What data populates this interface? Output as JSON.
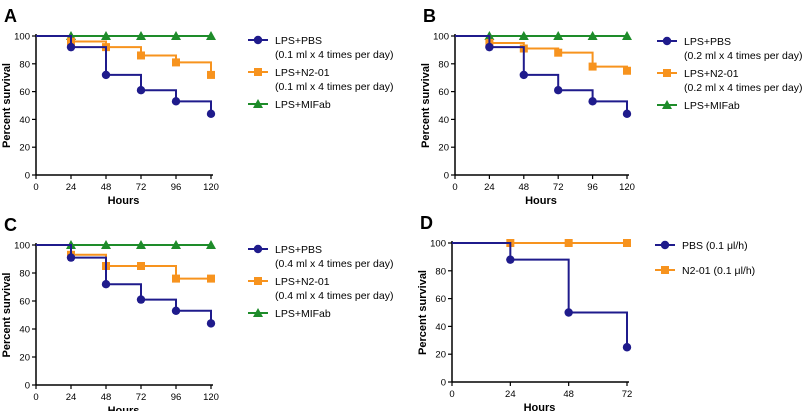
{
  "colors": {
    "pbs": "#1f1b8c",
    "n2": "#f7931e",
    "mifab": "#1e8c2a"
  },
  "chart_data": [
    {
      "panel": "A",
      "type": "line",
      "ylabel": "Percent survival",
      "xlabel": "Hours",
      "xlim": [
        0,
        120
      ],
      "ylim": [
        0,
        100
      ],
      "xticks": [
        0,
        24,
        48,
        72,
        96,
        120
      ],
      "yticks": [
        0,
        20,
        40,
        60,
        80,
        100
      ],
      "series": [
        {
          "name": "LPS+PBS",
          "sub": "(0.1 ml x 4 times per day)",
          "color": "pbs",
          "marker": "circle",
          "x": [
            24,
            48,
            72,
            96,
            120
          ],
          "values": [
            92,
            72,
            61,
            53,
            44
          ]
        },
        {
          "name": "LPS+N2-01",
          "sub": "(0.1 ml x 4 times per day)",
          "color": "n2",
          "marker": "square",
          "x": [
            24,
            48,
            72,
            96,
            120
          ],
          "values": [
            96,
            92,
            86,
            81,
            72
          ]
        },
        {
          "name": "LPS+MIFab",
          "sub": "",
          "color": "mifab",
          "marker": "triangle",
          "x": [
            24,
            48,
            72,
            96,
            120
          ],
          "values": [
            100,
            100,
            100,
            100,
            100
          ]
        }
      ]
    },
    {
      "panel": "B",
      "type": "line",
      "ylabel": "Percent survival",
      "xlabel": "Hours",
      "xlim": [
        0,
        120
      ],
      "ylim": [
        0,
        100
      ],
      "xticks": [
        0,
        24,
        48,
        72,
        96,
        120
      ],
      "yticks": [
        0,
        20,
        40,
        60,
        80,
        100
      ],
      "series": [
        {
          "name": "LPS+PBS",
          "sub": "(0.2 ml x 4 times per day)",
          "color": "pbs",
          "marker": "circle",
          "x": [
            24,
            48,
            72,
            96,
            120
          ],
          "values": [
            92,
            72,
            61,
            53,
            44
          ]
        },
        {
          "name": "LPS+N2-01",
          "sub": "(0.2 ml x 4 times per day)",
          "color": "n2",
          "marker": "square",
          "x": [
            24,
            48,
            72,
            96,
            120
          ],
          "values": [
            95,
            91,
            88,
            78,
            75
          ]
        },
        {
          "name": "LPS+MIFab",
          "sub": "",
          "color": "mifab",
          "marker": "triangle",
          "x": [
            24,
            48,
            72,
            96,
            120
          ],
          "values": [
            100,
            100,
            100,
            100,
            100
          ]
        }
      ]
    },
    {
      "panel": "C",
      "type": "line",
      "ylabel": "Percent survival",
      "xlabel": "Hours",
      "xlim": [
        0,
        120
      ],
      "ylim": [
        0,
        100
      ],
      "xticks": [
        0,
        24,
        48,
        72,
        96,
        120
      ],
      "yticks": [
        0,
        20,
        40,
        60,
        80,
        100
      ],
      "series": [
        {
          "name": "LPS+PBS",
          "sub": "(0.4 ml x 4 times per day)",
          "color": "pbs",
          "marker": "circle",
          "x": [
            24,
            48,
            72,
            96,
            120
          ],
          "values": [
            91,
            72,
            61,
            53,
            44
          ]
        },
        {
          "name": "LPS+N2-01",
          "sub": "(0.4 ml x 4 times per day)",
          "color": "n2",
          "marker": "square",
          "x": [
            24,
            48,
            72,
            96,
            120
          ],
          "values": [
            93,
            85,
            85,
            76,
            76
          ]
        },
        {
          "name": "LPS+MIFab",
          "sub": "",
          "color": "mifab",
          "marker": "triangle",
          "x": [
            24,
            48,
            72,
            96,
            120
          ],
          "values": [
            100,
            100,
            100,
            100,
            100
          ]
        }
      ]
    },
    {
      "panel": "D",
      "type": "line",
      "ylabel": "Percent survival",
      "xlabel": "Hours",
      "xlim": [
        0,
        72
      ],
      "ylim": [
        0,
        100
      ],
      "xticks": [
        0,
        24,
        48,
        72
      ],
      "yticks": [
        0,
        20,
        40,
        60,
        80,
        100
      ],
      "series": [
        {
          "name": "PBS (0.1 μl/h)",
          "sub": "",
          "color": "pbs",
          "marker": "circle",
          "x": [
            24,
            48,
            72
          ],
          "values": [
            88,
            50,
            25
          ]
        },
        {
          "name": "N2-01 (0.1 μl/h)",
          "sub": "",
          "color": "n2",
          "marker": "square",
          "x": [
            24,
            48,
            72
          ],
          "values": [
            100,
            100,
            100
          ]
        }
      ]
    }
  ]
}
